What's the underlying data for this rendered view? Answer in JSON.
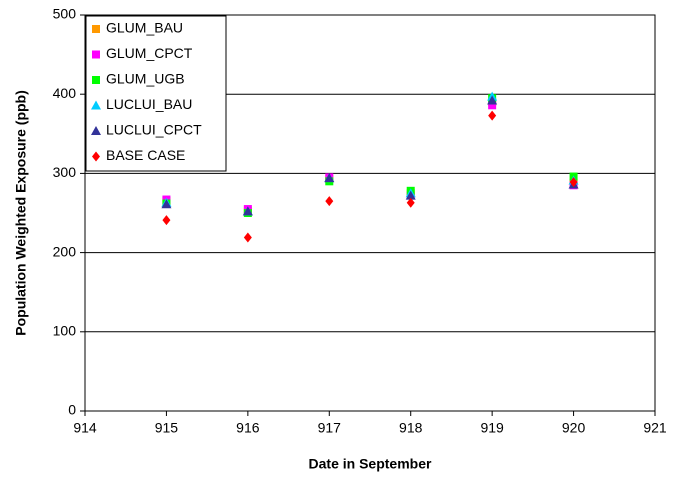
{
  "chart_data": {
    "type": "scatter",
    "xlabel": "Date in September",
    "ylabel": "Population Weighted Exposure (ppb)",
    "x": [
      915,
      916,
      917,
      918,
      919,
      920
    ],
    "xlim": [
      914,
      921
    ],
    "xticks": [
      914,
      915,
      916,
      917,
      918,
      919,
      920,
      921
    ],
    "ylim": [
      0,
      500
    ],
    "yticks": [
      0,
      100,
      200,
      300,
      400,
      500
    ],
    "grid": true,
    "legend": "upper left",
    "series": [
      {
        "name": "GLUM_BAU",
        "color": "#ff9900",
        "marker": "square",
        "values": [
          265,
          253,
          293,
          275,
          390,
          288
        ]
      },
      {
        "name": "GLUM_CPCT",
        "color": "#ff00ff",
        "marker": "square",
        "values": [
          267,
          255,
          295,
          272,
          386,
          285
        ]
      },
      {
        "name": "GLUM_UGB",
        "color": "#00ff00",
        "marker": "square",
        "values": [
          262,
          250,
          290,
          278,
          395,
          296
        ]
      },
      {
        "name": "LUCLUI_BAU",
        "color": "#00ccff",
        "marker": "triangle",
        "values": [
          263,
          252,
          294,
          275,
          397,
          291
        ]
      },
      {
        "name": "LUCLUI_CPCT",
        "color": "#333399",
        "marker": "triangle",
        "values": [
          261,
          252,
          294,
          272,
          392,
          286
        ]
      },
      {
        "name": "BASE CASE",
        "color": "#ff0000",
        "marker": "diamond",
        "values": [
          241,
          219,
          265,
          263,
          373,
          289
        ]
      }
    ]
  }
}
